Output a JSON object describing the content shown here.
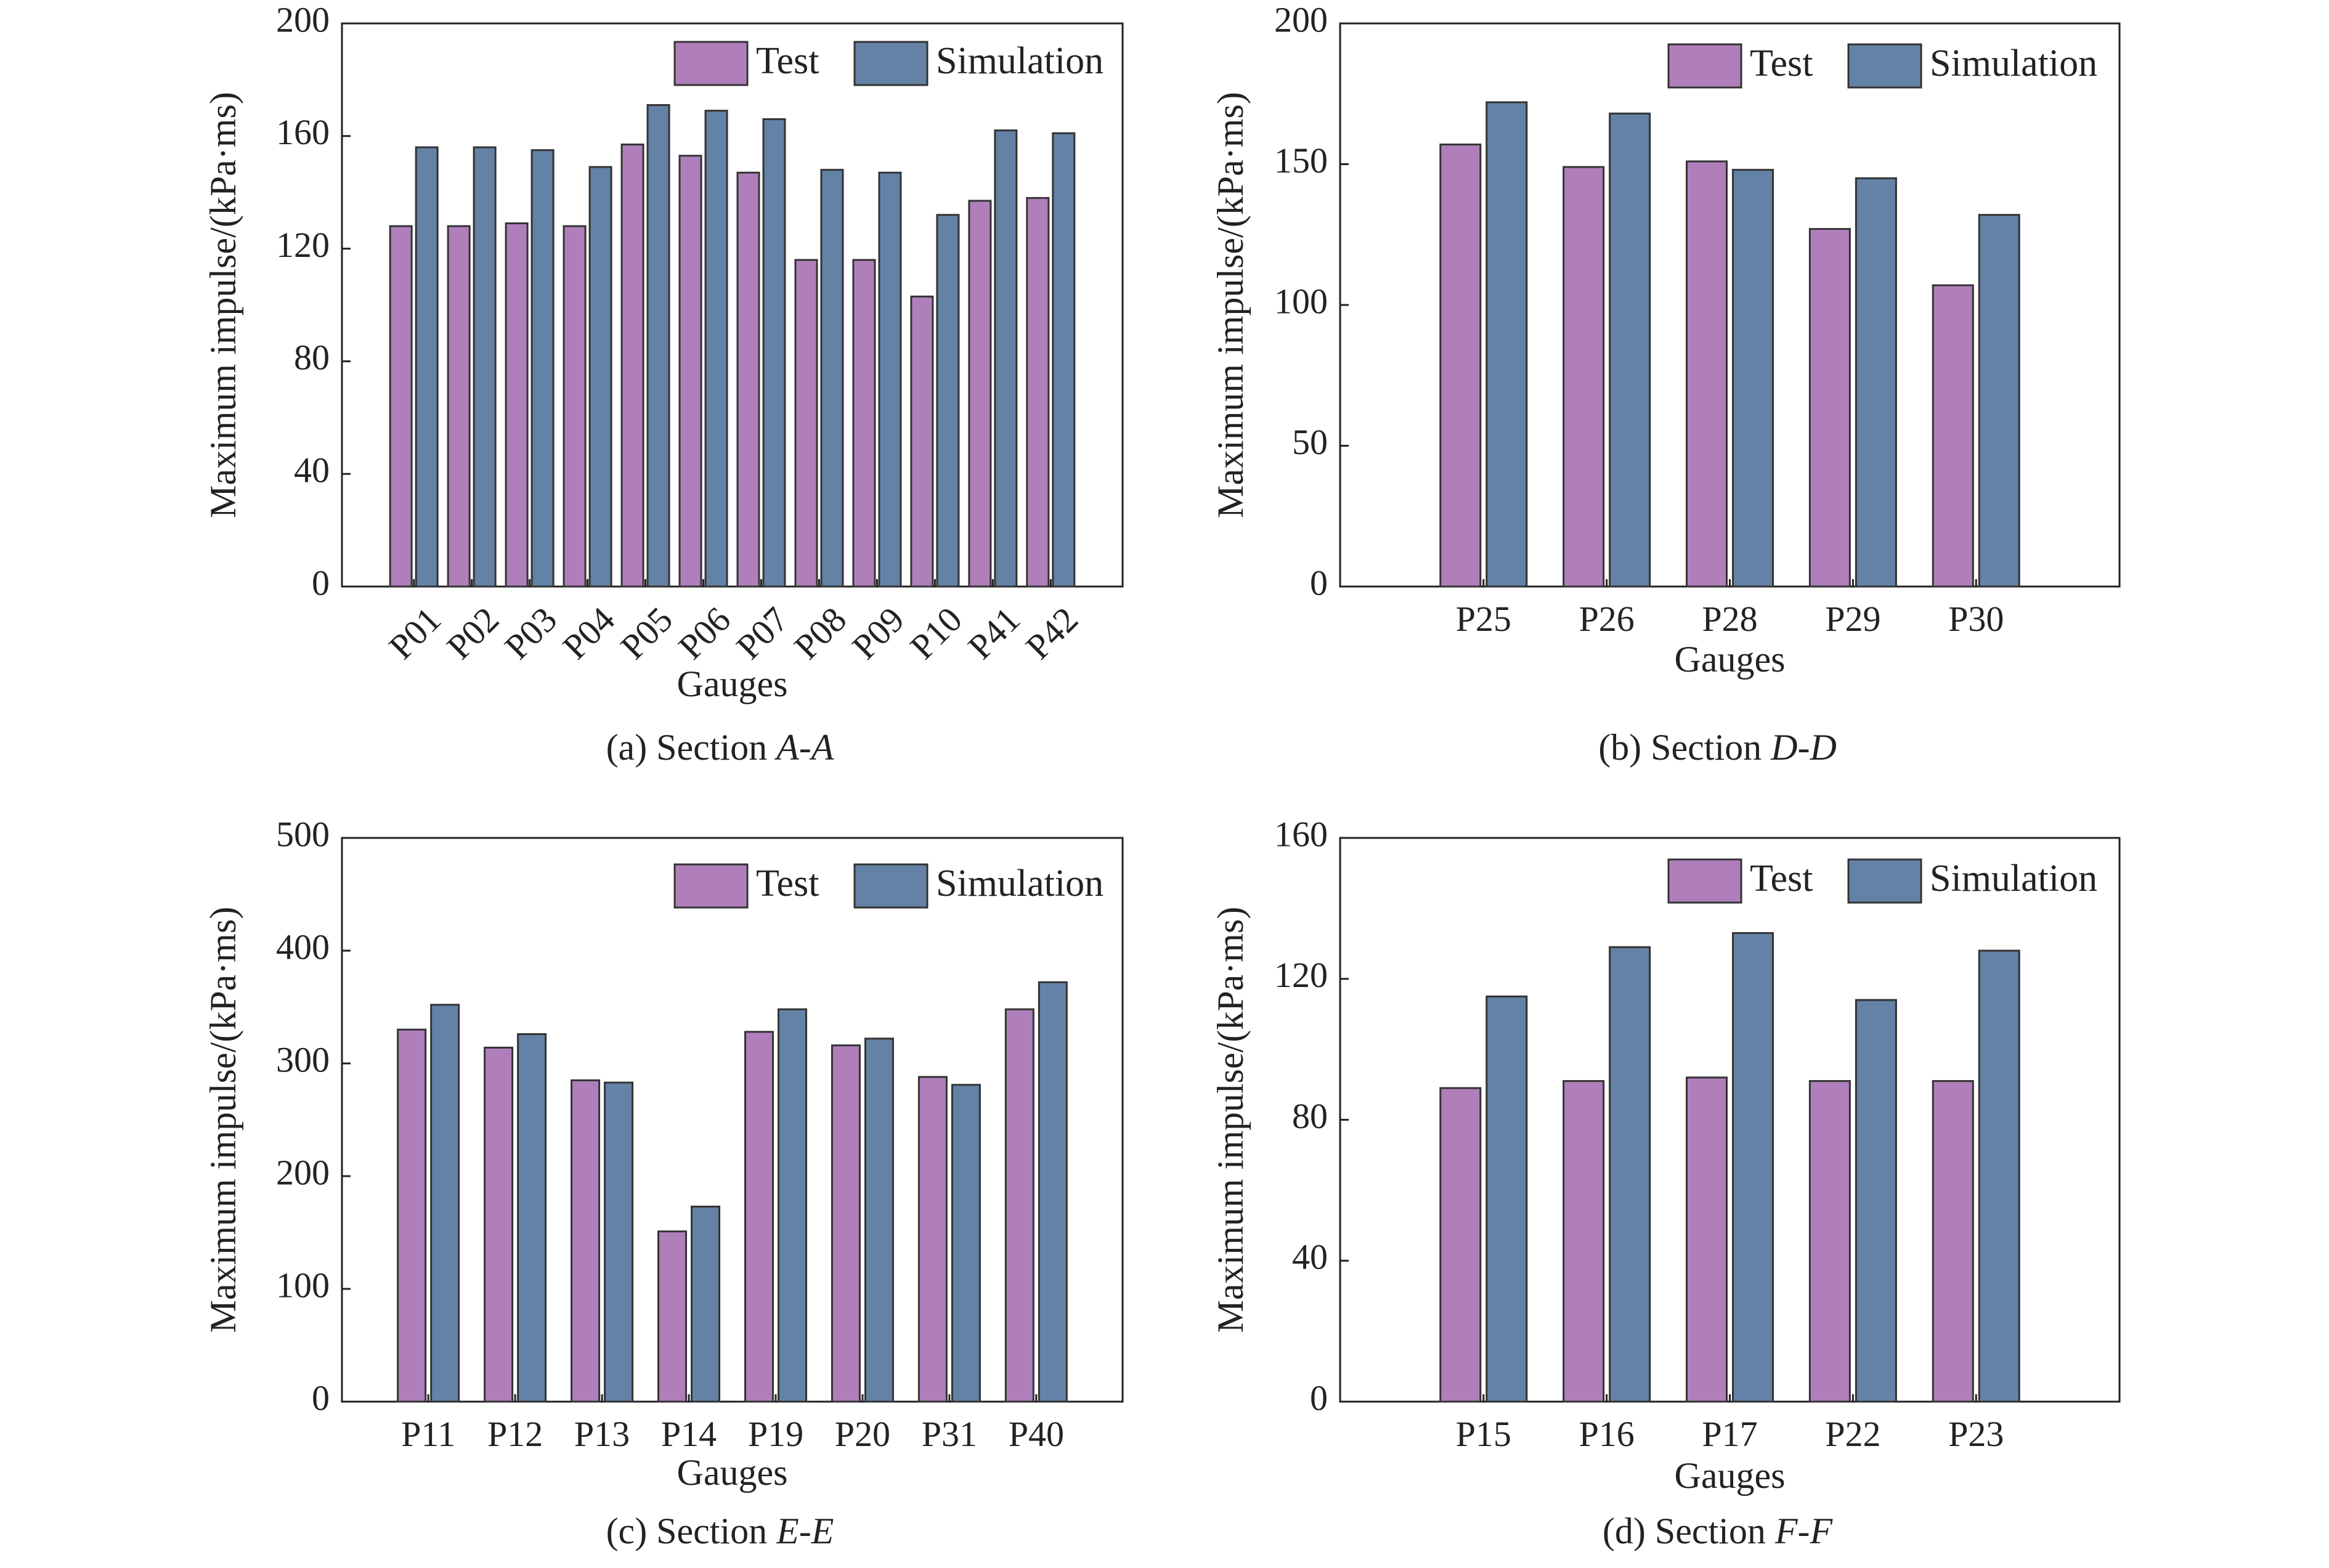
{
  "series_colors": {
    "test": "#b07fbb",
    "simulation": "#6382a6"
  },
  "chart_data": [
    {
      "type": "bar",
      "caption_prefix": "(a) Section ",
      "caption_italic": "A-A",
      "xlabel": "Gauges",
      "ylabel": "Maximum impulse/(kPa·ms)",
      "ylim": [
        0,
        200
      ],
      "yticks": [
        "0",
        "40",
        "80",
        "120",
        "160",
        "200"
      ],
      "xtick_rotation": -45,
      "legend": "top-right",
      "categories": [
        "P01",
        "P02",
        "P03",
        "P04",
        "P05",
        "P06",
        "P07",
        "P08",
        "P09",
        "P10",
        "P41",
        "P42"
      ],
      "series": [
        {
          "name": "Test",
          "values": [
            128,
            128,
            129,
            128,
            157,
            153,
            147,
            116,
            116,
            103,
            137,
            138
          ]
        },
        {
          "name": "Simulation",
          "values": [
            156,
            156,
            155,
            149,
            171,
            169,
            166,
            148,
            147,
            132,
            162,
            161
          ]
        }
      ]
    },
    {
      "type": "bar",
      "caption_prefix": "(b) Section ",
      "caption_italic": "D-D",
      "xlabel": "Gauges",
      "ylabel": "Maximum impulse/(kPa·ms)",
      "ylim": [
        0,
        200
      ],
      "yticks": [
        "0",
        "50",
        "100",
        "150",
        "200"
      ],
      "xtick_rotation": 0,
      "legend": "top-right",
      "categories": [
        "P25",
        "P26",
        "P28",
        "P29",
        "P30"
      ],
      "series": [
        {
          "name": "Test",
          "values": [
            157,
            149,
            151,
            127,
            107
          ]
        },
        {
          "name": "Simulation",
          "values": [
            172,
            168,
            148,
            145,
            132
          ]
        }
      ]
    },
    {
      "type": "bar",
      "caption_prefix": "(c) Section ",
      "caption_italic": "E-E",
      "xlabel": "Gauges",
      "ylabel": "Maximum impulse/(kPa·ms)",
      "ylim": [
        0,
        500
      ],
      "yticks": [
        "0",
        "100",
        "200",
        "300",
        "400",
        "500"
      ],
      "xtick_rotation": 0,
      "legend": "top-right",
      "categories": [
        "P11",
        "P12",
        "P13",
        "P14",
        "P19",
        "P20",
        "P31",
        "P40"
      ],
      "series": [
        {
          "name": "Test",
          "values": [
            330,
            314,
            285,
            151,
            328,
            316,
            288,
            348
          ]
        },
        {
          "name": "Simulation",
          "values": [
            352,
            326,
            283,
            173,
            348,
            322,
            281,
            372
          ]
        }
      ]
    },
    {
      "type": "bar",
      "caption_prefix": "(d) Section ",
      "caption_italic": "F-F",
      "xlabel": "Gauges",
      "ylabel": "Maximum impulse/(kPa·ms)",
      "ylim": [
        0,
        160
      ],
      "yticks": [
        "0",
        "40",
        "80",
        "120",
        "160"
      ],
      "xtick_rotation": 0,
      "legend": "top-right",
      "categories": [
        "P15",
        "P16",
        "P17",
        "P22",
        "P23"
      ],
      "series": [
        {
          "name": "Test",
          "values": [
            89,
            91,
            92,
            91,
            91
          ]
        },
        {
          "name": "Simulation",
          "values": [
            115,
            129,
            133,
            114,
            128
          ]
        }
      ]
    }
  ]
}
